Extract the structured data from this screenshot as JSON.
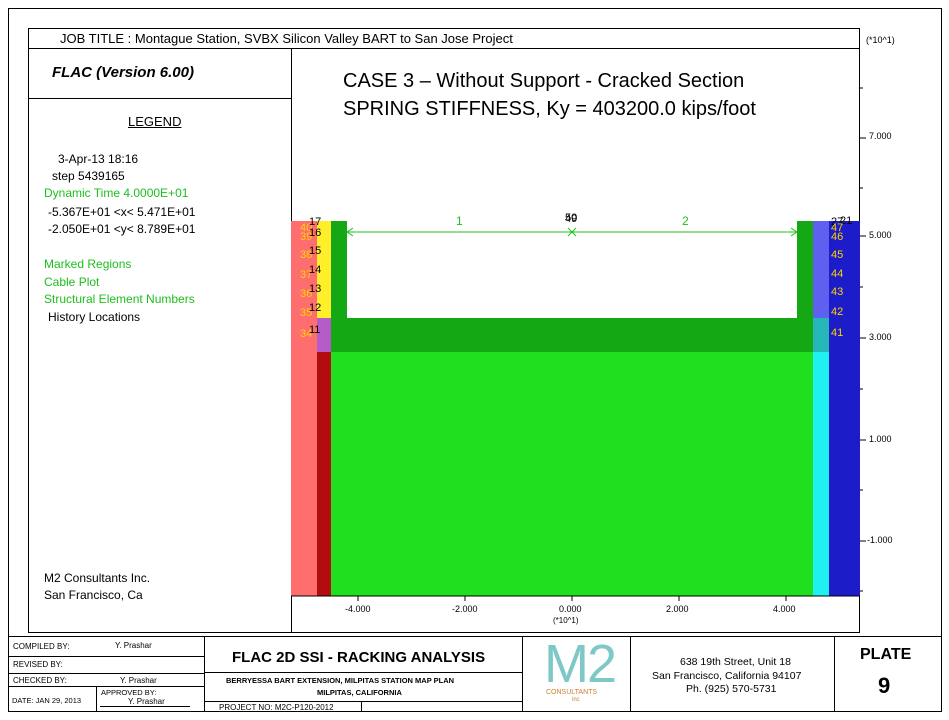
{
  "header": {
    "job_title": "JOB TITLE : Montague Station, SVBX Silicon Valley BART  to San Jose Project",
    "scale": "(*10^1)"
  },
  "legend": {
    "program": "FLAC (Version 6.00)",
    "title": "LEGEND",
    "date": "3-Apr-13  18:16",
    "step": "step  5439165",
    "dynamic_time": "Dynamic Time  4.0000E+01",
    "x_range": "-5.367E+01 <x<  5.471E+01",
    "y_range": "-2.050E+01 <y<  8.789E+01",
    "items": [
      "Marked Regions",
      "Cable Plot",
      "Structural Element Numbers",
      "History Locations"
    ],
    "company": "M2 Consultants Inc.",
    "city": "San Francisco, Ca",
    "colors": {
      "green": "#1cbf1c"
    }
  },
  "plot": {
    "case_title": "CASE 3 – Without Support - Cracked Section",
    "stiffness": "SPRING STIFFNESS, Ky = 403200.0 kips/foot",
    "x_ticks": [
      "-4.000",
      "-2.000",
      "0.000",
      "2.000",
      "4.000"
    ],
    "x_scale": "(*10^1)",
    "y_ticks": [
      "7.000",
      "5.000",
      "3.000",
      "1.000",
      "-1.000"
    ],
    "beam_labels": [
      "1",
      "2"
    ],
    "top_label_a": "50",
    "top_label_b": "49",
    "left_yellow": [
      "40",
      "39",
      "38",
      "37",
      "36",
      "35",
      "34"
    ],
    "left_black": [
      "17",
      "16",
      "15",
      "14",
      "13",
      "12",
      "11"
    ],
    "right_black": [
      "27",
      "21"
    ],
    "right_yellow": [
      "47",
      "46",
      "45",
      "44",
      "43",
      "42",
      "41"
    ],
    "colors": {
      "green": "#1fdf1f",
      "dark_green": "#14a814",
      "salmon": "#ff6e6e",
      "dark_red": "#b30c0c",
      "yellow": "#ffee2a",
      "purple": "#b45cc8",
      "blue": "#1c1cc8",
      "light_blue": "#6060f0",
      "cyan": "#1ff0f0",
      "teal": "#26b8b8"
    }
  },
  "title_block": {
    "compiled_by_label": "COMPILED BY:",
    "compiled_by": "Y. Prashar",
    "revised_by_label": "REVISED BY:",
    "checked_by_label": "CHECKED BY:",
    "checked_by": "Y. Prashar",
    "date": "DATE: JAN 29, 2013",
    "approved_by_label": "APPROVED BY:",
    "approved_by": "Y. Prashar",
    "analysis_title": "FLAC 2D SSI  -  RACKING ANALYSIS",
    "project_line1": "BERRYESSA BART EXTENSION, MILPITAS STATION MAP PLAN",
    "project_line2": "MILPITAS, CALIFORNIA",
    "project_no": "PROJECT NO: M2C-P120-2012",
    "logo_text": "M2",
    "logo_sub": "CONSULTANTS",
    "logo_inc": "inc",
    "address1": "638 19th Street, Unit 18",
    "address2": "San Francisco, California 94107",
    "phone": "Ph. (925) 570-5731",
    "plate_label": "PLATE",
    "plate_number": "9"
  }
}
